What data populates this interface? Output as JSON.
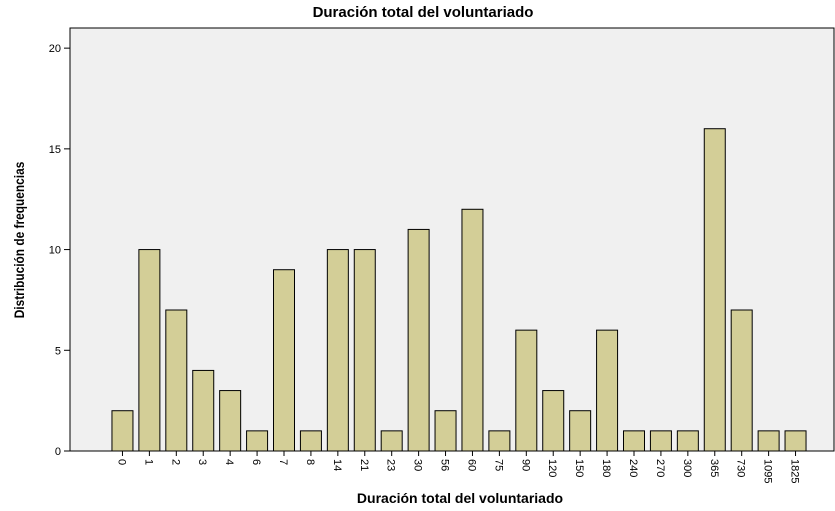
{
  "chart_data": {
    "type": "bar",
    "title": "Duración total del voluntariado",
    "x_label": "Duración total del voluntariado",
    "y_label": "Distribución de frequencias",
    "categories": [
      "0",
      "1",
      "2",
      "3",
      "4",
      "6",
      "7",
      "8",
      "14",
      "21",
      "23",
      "30",
      "56",
      "60",
      "75",
      "90",
      "120",
      "150",
      "180",
      "240",
      "270",
      "300",
      "365",
      "730",
      "1095",
      "1825"
    ],
    "values": [
      2,
      10,
      7,
      4,
      3,
      1,
      9,
      1,
      10,
      10,
      1,
      11,
      2,
      12,
      1,
      6,
      3,
      2,
      6,
      1,
      1,
      1,
      16,
      7,
      1,
      1
    ],
    "color": "#d3ce97",
    "ylim": [
      0,
      21
    ],
    "yticks": [
      0,
      5,
      10,
      15,
      20
    ],
    "grid": false
  }
}
